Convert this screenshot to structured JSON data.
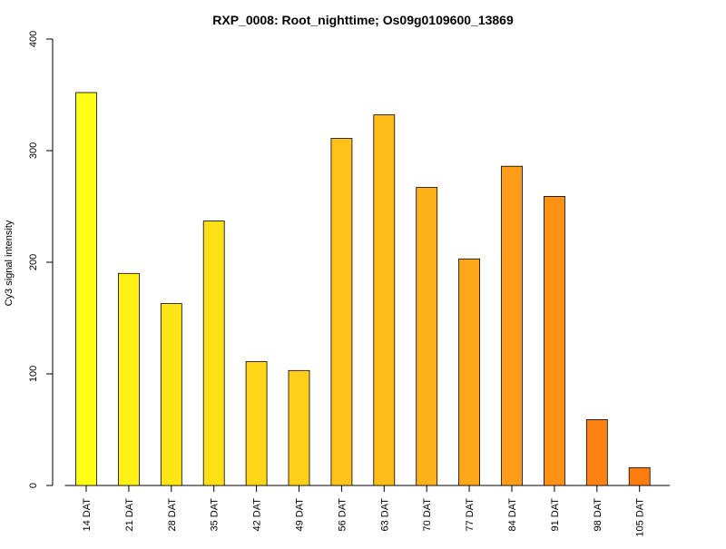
{
  "chart_data": {
    "type": "bar",
    "title": "RXP_0008: Root_nighttime; Os09g0109600_13869",
    "xlabel": "",
    "ylabel": "Cy3 signal intensity",
    "categories": [
      "14 DAT",
      "21 DAT",
      "28 DAT",
      "35 DAT",
      "42 DAT",
      "49 DAT",
      "56 DAT",
      "63 DAT",
      "70 DAT",
      "77 DAT",
      "84 DAT",
      "91 DAT",
      "98 DAT",
      "105 DAT"
    ],
    "values": [
      352,
      190,
      163,
      237,
      111,
      103,
      311,
      332,
      267,
      203,
      286,
      259,
      59,
      16
    ],
    "bar_colors": [
      "#ffff17",
      "#fff016",
      "#ffe515",
      "#ffe017",
      "#ffd618",
      "#ffcf1b",
      "#ffc21a",
      "#ffbc18",
      "#ffb11a",
      "#ffa71b",
      "#ff9d18",
      "#ff9214",
      "#ff8312",
      "#ff7c0f"
    ],
    "ylim": [
      0,
      400
    ],
    "yticks": [
      0,
      100,
      200,
      300,
      400
    ],
    "grid": false,
    "legend": "none"
  }
}
